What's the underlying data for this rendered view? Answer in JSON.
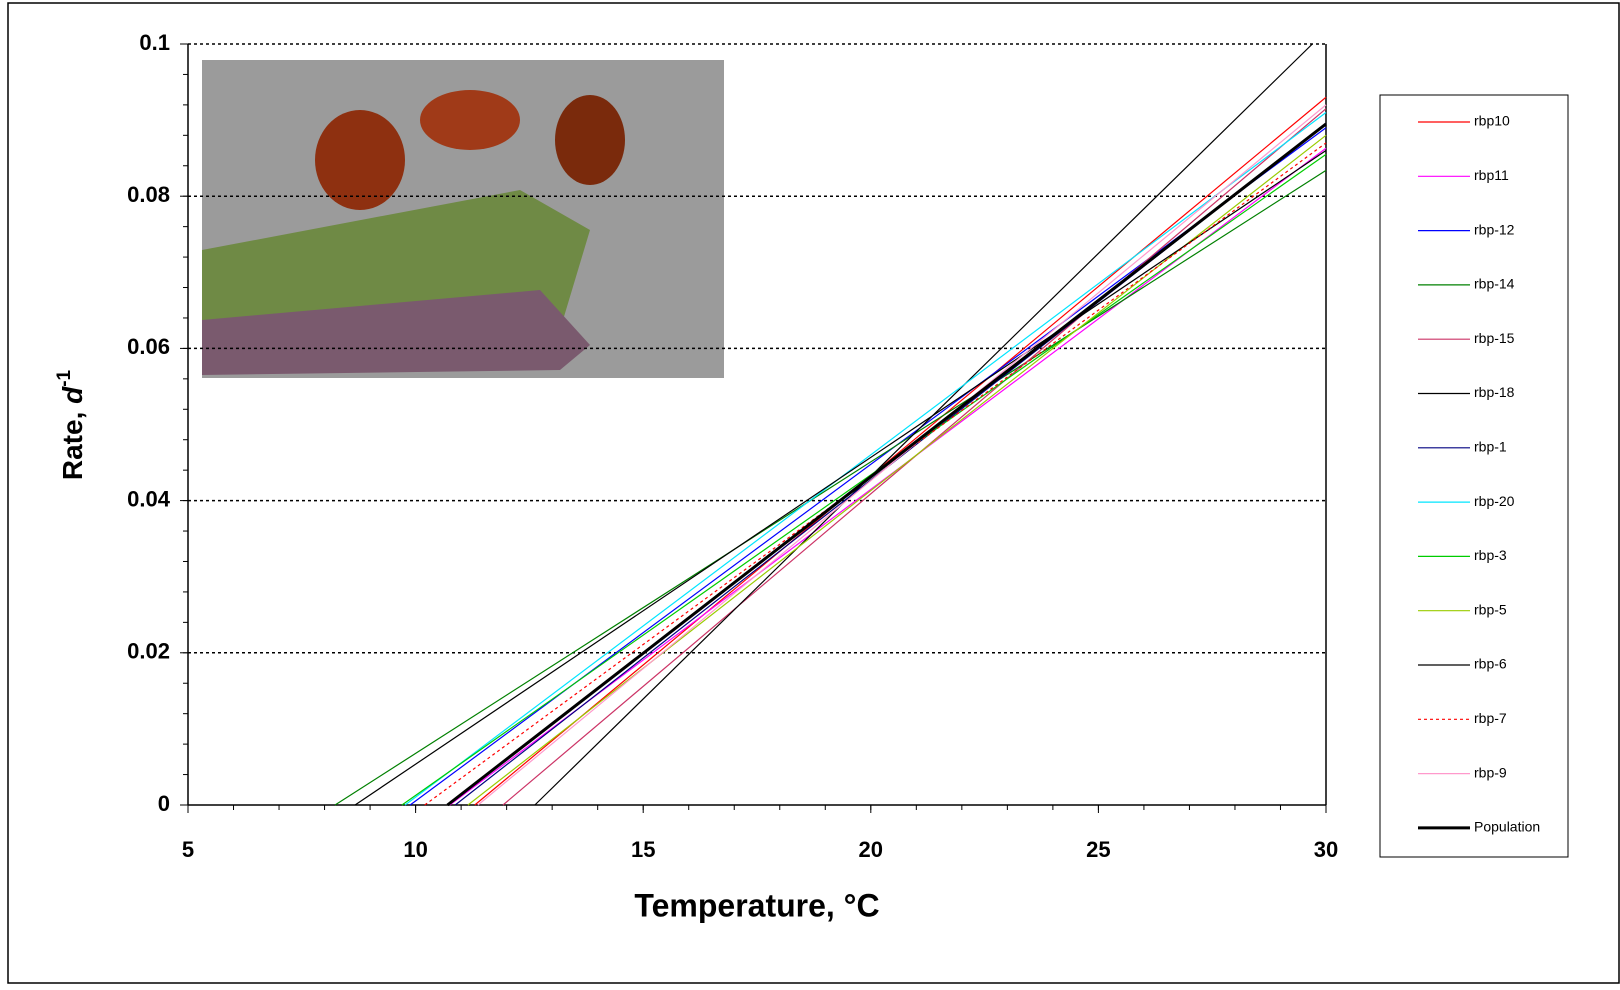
{
  "chart_data": {
    "type": "line",
    "xlabel": "Temperature, °C",
    "ylabel": {
      "text": "Rate, ",
      "variable": "d",
      "exponent": "-1"
    },
    "xlim": [
      5,
      30
    ],
    "xticks": [
      5,
      10,
      15,
      20,
      25,
      30
    ],
    "ylim": [
      0,
      0.1
    ],
    "yticks": [
      0,
      0.02,
      0.04,
      0.06,
      0.08,
      0.1
    ],
    "grid": true,
    "legend": "right",
    "series": [
      {
        "name": "rbp10",
        "color": "#ff0000",
        "x": [
          11.3,
          30
        ],
        "values": [
          0,
          0.093
        ]
      },
      {
        "name": "rbp11",
        "color": "#ff00ff",
        "x": [
          10.75,
          30
        ],
        "values": [
          0,
          0.0863
        ]
      },
      {
        "name": "rbp-12",
        "color": "#0000ff",
        "x": [
          9.88,
          30
        ],
        "values": [
          0,
          0.089
        ]
      },
      {
        "name": "rbp-14",
        "color": "#008000",
        "x": [
          8.23,
          30
        ],
        "values": [
          0,
          0.0834
        ]
      },
      {
        "name": "rbp-15",
        "color": "#cc3366",
        "x": [
          11.92,
          30
        ],
        "values": [
          0,
          0.0915
        ]
      },
      {
        "name": "rbp-18",
        "color": "#000000",
        "x": [
          12.62,
          29.7
        ],
        "values": [
          0,
          0.1
        ]
      },
      {
        "name": "rbp-1",
        "color": "#000080",
        "x": [
          10.87,
          30
        ],
        "values": [
          0,
          0.0895
        ]
      },
      {
        "name": "rbp-20",
        "color": "#00e5ff",
        "x": [
          9.77,
          30
        ],
        "values": [
          0,
          0.091
        ]
      },
      {
        "name": "rbp-3",
        "color": "#00cc00",
        "x": [
          9.7,
          30
        ],
        "values": [
          0,
          0.0855
        ]
      },
      {
        "name": "rbp-5",
        "color": "#99cc00",
        "x": [
          11.15,
          30
        ],
        "values": [
          0,
          0.088
        ]
      },
      {
        "name": "rbp-6",
        "color": "#000000",
        "x": [
          8.67,
          30
        ],
        "values": [
          0,
          0.086
        ]
      },
      {
        "name": "rbp-7",
        "color": "#ff0000",
        "style": "dotted",
        "x": [
          10.2,
          30
        ],
        "values": [
          0,
          0.087
        ]
      },
      {
        "name": "rbp-9",
        "color": "#ff99cc",
        "x": [
          11.37,
          30
        ],
        "values": [
          0,
          0.092
        ]
      },
      {
        "name": "Population",
        "color": "#000000",
        "width": 3,
        "x": [
          10.7,
          30
        ],
        "values": [
          0,
          0.0895
        ]
      }
    ]
  }
}
